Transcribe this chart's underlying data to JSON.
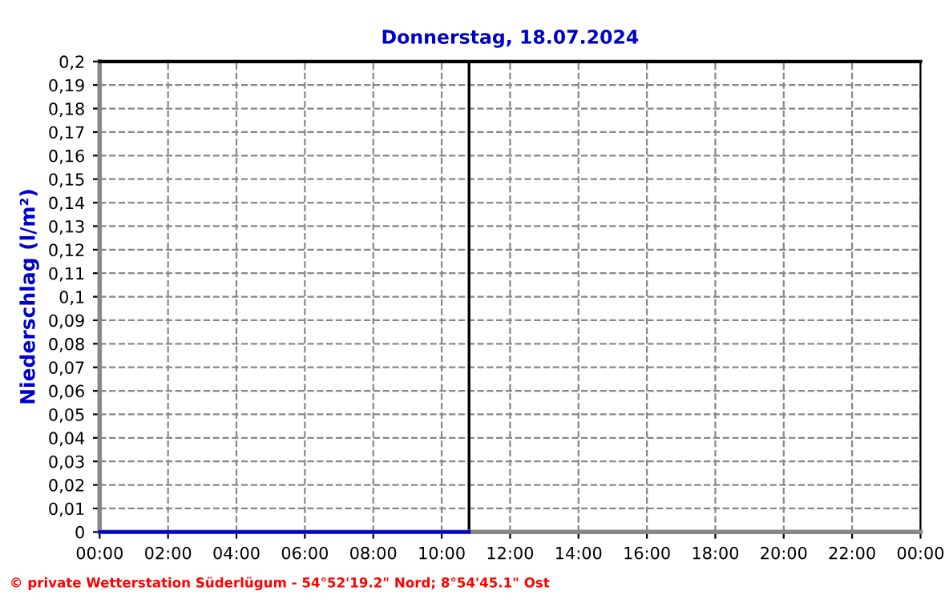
{
  "chart_data": {
    "type": "line",
    "title": "Donnerstag, 18.07.2024",
    "ylabel": "Niederschlag (l/m²)",
    "series": [
      {
        "color": "#0000cc",
        "x": [
          0,
          10.8
        ],
        "values": [
          0,
          0
        ]
      }
    ],
    "xlim": [
      0,
      24
    ],
    "xticks": [
      {
        "value": 0,
        "label": "00:00"
      },
      {
        "value": 2,
        "label": "02:00"
      },
      {
        "value": 4,
        "label": "04:00"
      },
      {
        "value": 6,
        "label": "06:00"
      },
      {
        "value": 8,
        "label": "08:00"
      },
      {
        "value": 10,
        "label": "10:00"
      },
      {
        "value": 12,
        "label": "12:00"
      },
      {
        "value": 14,
        "label": "14:00"
      },
      {
        "value": 16,
        "label": "16:00"
      },
      {
        "value": 18,
        "label": "18:00"
      },
      {
        "value": 20,
        "label": "20:00"
      },
      {
        "value": 22,
        "label": "22:00"
      },
      {
        "value": 24,
        "label": "00:00"
      }
    ],
    "ylim": [
      0,
      0.2
    ],
    "yticks": [
      0,
      {
        "value": 0.01,
        "label": "0,01"
      },
      {
        "value": 0.02,
        "label": "0,02"
      },
      {
        "value": 0.03,
        "label": "0,03"
      },
      {
        "value": 0.04,
        "label": "0,04"
      },
      {
        "value": 0.05,
        "label": "0,05"
      },
      {
        "value": 0.06,
        "label": "0,06"
      },
      {
        "value": 0.07,
        "label": "0,07"
      },
      {
        "value": 0.08,
        "label": "0,08"
      },
      {
        "value": 0.09,
        "label": "0,09"
      },
      {
        "value": 0.1,
        "label": "0,1"
      },
      {
        "value": 0.11,
        "label": "0,11"
      },
      {
        "value": 0.12,
        "label": "0,12"
      },
      {
        "value": 0.13,
        "label": "0,13"
      },
      {
        "value": 0.14,
        "label": "0,14"
      },
      {
        "value": 0.15,
        "label": "0,15"
      },
      {
        "value": 0.16,
        "label": "0,16"
      },
      {
        "value": 0.17,
        "label": "0,17"
      },
      {
        "value": 0.18,
        "label": "0,18"
      },
      {
        "value": 0.19,
        "label": "0,19"
      },
      {
        "value": 0.2,
        "label": "0,2"
      }
    ],
    "ref_lines": [
      {
        "axis": "x",
        "value": 10.8,
        "color": "#000000"
      }
    ],
    "grid": true,
    "line_style": "solid",
    "marker": "none",
    "annotations": [
      "© private Wetterstation Süderlügum - 54°52'19.2\" Nord; 8°54'45.1\" Ost"
    ]
  }
}
